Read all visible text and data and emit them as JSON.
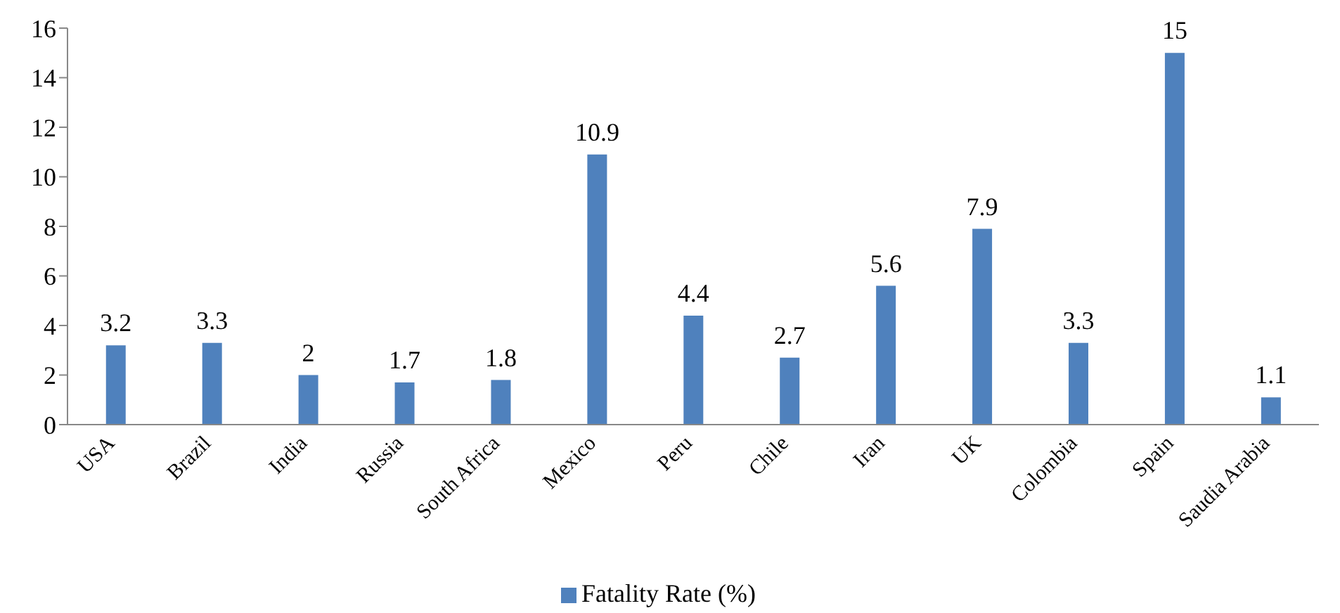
{
  "chart_data": {
    "type": "bar",
    "categories": [
      "USA",
      "Brazil",
      "India",
      "Russia",
      "South Africa",
      "Mexico",
      "Peru",
      "Chile",
      "Iran",
      "UK",
      "Colombia",
      "Spain",
      "Saudia Arabia"
    ],
    "series": [
      {
        "name": "Fatality Rate (%)",
        "color": "#4f81bd",
        "values": [
          3.2,
          3.3,
          2,
          1.7,
          1.8,
          10.9,
          4.4,
          2.7,
          5.6,
          7.9,
          3.3,
          15,
          1.1
        ]
      }
    ],
    "ylim": [
      0,
      16
    ],
    "yticks": [
      0,
      2,
      4,
      6,
      8,
      10,
      12,
      14,
      16
    ],
    "grid": false,
    "legend": "bottom",
    "data_labels": true
  }
}
